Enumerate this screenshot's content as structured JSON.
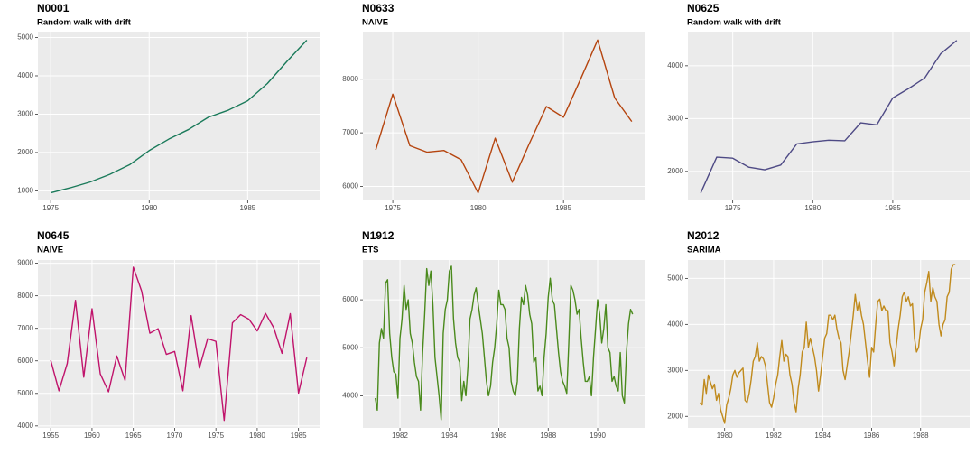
{
  "chart_data": [
    {
      "type": "line",
      "title": "N0001",
      "subtitle": "Random walk with drift",
      "color": "#1a7a5a",
      "x": [
        1975,
        1976,
        1977,
        1978,
        1979,
        1980,
        1981,
        1982,
        1983,
        1984,
        1985,
        1986,
        1987,
        1988
      ],
      "values": [
        950,
        1080,
        1230,
        1430,
        1680,
        2050,
        2350,
        2600,
        2920,
        3100,
        3350,
        3800,
        4380,
        4930
      ],
      "xlim": [
        1974.35,
        1988.65
      ],
      "ylim": [
        750,
        5130
      ],
      "xticks": [
        1975,
        1980,
        1985
      ],
      "yticks": [
        1000,
        2000,
        3000,
        4000,
        5000
      ]
    },
    {
      "type": "line",
      "title": "N0633",
      "subtitle": "NAIVE",
      "color": "#b5440e",
      "x": [
        1974,
        1975,
        1976,
        1977,
        1978,
        1979,
        1980,
        1981,
        1982,
        1983,
        1984,
        1985,
        1986,
        1987,
        1988,
        1989
      ],
      "values": [
        6680,
        7720,
        6760,
        6640,
        6670,
        6500,
        5880,
        6900,
        6080,
        6800,
        7490,
        7290,
        8000,
        8730,
        7650,
        7210
      ],
      "xlim": [
        1973.25,
        1989.75
      ],
      "ylim": [
        5740,
        8870
      ],
      "xticks": [
        1975,
        1980,
        1985
      ],
      "yticks": [
        6000,
        7000,
        8000
      ]
    },
    {
      "type": "line",
      "title": "N0625",
      "subtitle": "Random walk with drift",
      "color": "#4e4a85",
      "x": [
        1973,
        1974,
        1975,
        1976,
        1977,
        1978,
        1979,
        1980,
        1981,
        1982,
        1983,
        1984,
        1985,
        1986,
        1987,
        1988,
        1989
      ],
      "values": [
        1590,
        2270,
        2250,
        2080,
        2030,
        2120,
        2520,
        2560,
        2590,
        2580,
        2920,
        2880,
        3390,
        3570,
        3770,
        4230,
        4480
      ],
      "xlim": [
        1972.2,
        1989.8
      ],
      "ylim": [
        1450,
        4630
      ],
      "xticks": [
        1975,
        1980,
        1985
      ],
      "yticks": [
        2000,
        3000,
        4000
      ]
    },
    {
      "type": "line",
      "title": "N0645",
      "subtitle": "NAIVE",
      "color": "#c0136b",
      "x": [
        1955,
        1956,
        1957,
        1958,
        1959,
        1960,
        1961,
        1962,
        1963,
        1964,
        1965,
        1966,
        1967,
        1968,
        1969,
        1970,
        1971,
        1972,
        1973,
        1974,
        1975,
        1976,
        1977,
        1978,
        1979,
        1980,
        1981,
        1982,
        1983,
        1984,
        1985,
        1986
      ],
      "values": [
        6020,
        5080,
        5920,
        7860,
        5500,
        7600,
        5600,
        5050,
        6150,
        5400,
        8880,
        8150,
        6850,
        6990,
        6200,
        6290,
        5080,
        7390,
        5780,
        6680,
        6600,
        4170,
        7170,
        7420,
        7280,
        6920,
        7460,
        7020,
        6230,
        7450,
        5010,
        6100
      ],
      "xlim": [
        1953.45,
        1987.55
      ],
      "ylim": [
        3940,
        9100
      ],
      "xticks": [
        1955,
        1960,
        1965,
        1970,
        1975,
        1980,
        1985
      ],
      "yticks": [
        4000,
        5000,
        6000,
        7000,
        8000,
        9000
      ]
    },
    {
      "type": "line",
      "title": "N1912",
      "subtitle": "ETS",
      "color": "#4a8a1c",
      "x": [
        1981,
        1981.083,
        1981.167,
        1981.25,
        1981.333,
        1981.417,
        1981.5,
        1981.583,
        1981.667,
        1981.75,
        1981.833,
        1981.917,
        1982,
        1982.083,
        1982.167,
        1982.25,
        1982.333,
        1982.417,
        1982.5,
        1982.583,
        1982.667,
        1982.75,
        1982.833,
        1982.917,
        1983,
        1983.083,
        1983.167,
        1983.25,
        1983.333,
        1983.417,
        1983.5,
        1983.583,
        1983.667,
        1983.75,
        1983.833,
        1983.917,
        1984,
        1984.083,
        1984.167,
        1984.25,
        1984.333,
        1984.417,
        1984.5,
        1984.583,
        1984.667,
        1984.75,
        1984.833,
        1984.917,
        1985,
        1985.083,
        1985.167,
        1985.25,
        1985.333,
        1985.417,
        1985.5,
        1985.583,
        1985.667,
        1985.75,
        1985.833,
        1985.917,
        1986,
        1986.083,
        1986.167,
        1986.25,
        1986.333,
        1986.417,
        1986.5,
        1986.583,
        1986.667,
        1986.75,
        1986.833,
        1986.917,
        1987,
        1987.083,
        1987.167,
        1987.25,
        1987.333,
        1987.417,
        1987.5,
        1987.583,
        1987.667,
        1987.75,
        1987.833,
        1987.917,
        1988,
        1988.083,
        1988.167,
        1988.25,
        1988.333,
        1988.417,
        1988.5,
        1988.583,
        1988.667,
        1988.75,
        1988.833,
        1988.917,
        1989,
        1989.083,
        1989.167,
        1989.25,
        1989.333,
        1989.417,
        1989.5,
        1989.583,
        1989.667,
        1989.75,
        1989.833,
        1989.917,
        1990,
        1990.083,
        1990.167,
        1990.25,
        1990.333,
        1990.417,
        1990.5,
        1990.583,
        1990.667,
        1990.75,
        1990.833,
        1990.917,
        1991,
        1991.083,
        1991.167,
        1991.25,
        1991.333,
        1991.417
      ],
      "values": [
        3950,
        3700,
        5100,
        5400,
        5200,
        6350,
        6420,
        5300,
        4800,
        4500,
        4450,
        3950,
        5200,
        5600,
        6300,
        5800,
        6000,
        5300,
        5100,
        4700,
        4400,
        4300,
        3700,
        4900,
        5700,
        6650,
        6300,
        6600,
        5900,
        4800,
        4400,
        4000,
        3500,
        5300,
        5800,
        6000,
        6600,
        6700,
        5600,
        5100,
        4800,
        4700,
        3900,
        4300,
        4000,
        4600,
        5600,
        5800,
        6100,
        6250,
        5900,
        5600,
        5300,
        4800,
        4300,
        4000,
        4200,
        4700,
        5000,
        5500,
        6200,
        5900,
        5900,
        5800,
        5200,
        5000,
        4300,
        4100,
        4000,
        4300,
        5400,
        6050,
        5900,
        6300,
        6100,
        5700,
        5500,
        4700,
        4800,
        4100,
        4200,
        4000,
        4800,
        5300,
        6050,
        6450,
        6000,
        5900,
        5400,
        4900,
        4500,
        4300,
        4200,
        4050,
        5100,
        6300,
        6200,
        6000,
        5700,
        5800,
        5200,
        4700,
        4300,
        4300,
        4400,
        4000,
        4800,
        5400,
        6000,
        5700,
        5100,
        5400,
        5900,
        5000,
        4900,
        4300,
        4400,
        4200,
        4100,
        4900,
        4000,
        3850,
        4900,
        5500,
        5800,
        5700
      ],
      "xlim": [
        1980.5,
        1991.9
      ],
      "ylim": [
        3330,
        6830
      ],
      "xticks": [
        1982,
        1984,
        1986,
        1988,
        1990
      ],
      "yticks": [
        4000,
        5000,
        6000
      ]
    },
    {
      "type": "line",
      "title": "N2012",
      "subtitle": "SARIMA",
      "color": "#c08a1c",
      "x": [
        1979,
        1979.083,
        1979.167,
        1979.25,
        1979.333,
        1979.417,
        1979.5,
        1979.583,
        1979.667,
        1979.75,
        1979.833,
        1979.917,
        1980,
        1980.083,
        1980.167,
        1980.25,
        1980.333,
        1980.417,
        1980.5,
        1980.583,
        1980.667,
        1980.75,
        1980.833,
        1980.917,
        1981,
        1981.083,
        1981.167,
        1981.25,
        1981.333,
        1981.417,
        1981.5,
        1981.583,
        1981.667,
        1981.75,
        1981.833,
        1981.917,
        1982,
        1982.083,
        1982.167,
        1982.25,
        1982.333,
        1982.417,
        1982.5,
        1982.583,
        1982.667,
        1982.75,
        1982.833,
        1982.917,
        1983,
        1983.083,
        1983.167,
        1983.25,
        1983.333,
        1983.417,
        1983.5,
        1983.583,
        1983.667,
        1983.75,
        1983.833,
        1983.917,
        1984,
        1984.083,
        1984.167,
        1984.25,
        1984.333,
        1984.417,
        1984.5,
        1984.583,
        1984.667,
        1984.75,
        1984.833,
        1984.917,
        1985,
        1985.083,
        1985.167,
        1985.25,
        1985.333,
        1985.417,
        1985.5,
        1985.583,
        1985.667,
        1985.75,
        1985.833,
        1985.917,
        1986,
        1986.083,
        1986.167,
        1986.25,
        1986.333,
        1986.417,
        1986.5,
        1986.583,
        1986.667,
        1986.75,
        1986.833,
        1986.917,
        1987,
        1987.083,
        1987.167,
        1987.25,
        1987.333,
        1987.417,
        1987.5,
        1987.583,
        1987.667,
        1987.75,
        1987.833,
        1987.917,
        1988,
        1988.083,
        1988.167,
        1988.25,
        1988.333,
        1988.417,
        1988.5,
        1988.583,
        1988.667,
        1988.75,
        1988.833,
        1988.917,
        1989,
        1989.083,
        1989.167,
        1989.25,
        1989.333,
        1989.417
      ],
      "values": [
        2300,
        2250,
        2800,
        2500,
        2900,
        2750,
        2600,
        2700,
        2350,
        2500,
        2150,
        2000,
        1850,
        2250,
        2400,
        2600,
        2900,
        3000,
        2850,
        2950,
        3000,
        3050,
        2350,
        2300,
        2500,
        2800,
        3200,
        3300,
        3600,
        3200,
        3300,
        3250,
        3100,
        2700,
        2300,
        2200,
        2400,
        2700,
        2900,
        3300,
        3650,
        3200,
        3350,
        3300,
        2900,
        2700,
        2300,
        2100,
        2600,
        2900,
        3400,
        3500,
        4050,
        3500,
        3700,
        3500,
        3300,
        3000,
        2550,
        2900,
        3300,
        3700,
        3800,
        4200,
        4200,
        4100,
        4200,
        3900,
        3700,
        3600,
        3000,
        2800,
        3100,
        3400,
        3800,
        4200,
        4650,
        4300,
        4500,
        4200,
        4000,
        3600,
        3200,
        2850,
        3500,
        3400,
        4000,
        4500,
        4550,
        4300,
        4400,
        4300,
        4300,
        3600,
        3400,
        3100,
        3500,
        3900,
        4200,
        4600,
        4700,
        4500,
        4600,
        4400,
        4450,
        3700,
        3400,
        3500,
        3900,
        4100,
        4700,
        4900,
        5150,
        4500,
        4800,
        4600,
        4500,
        4000,
        3750,
        4000,
        4100,
        4600,
        4700,
        5200,
        5300,
        5300
      ],
      "xlim": [
        1978.5,
        1990.0
      ],
      "ylim": [
        1750,
        5400
      ],
      "xticks": [
        1980,
        1982,
        1984,
        1986,
        1988
      ],
      "yticks": [
        2000,
        3000,
        4000,
        5000
      ]
    }
  ]
}
